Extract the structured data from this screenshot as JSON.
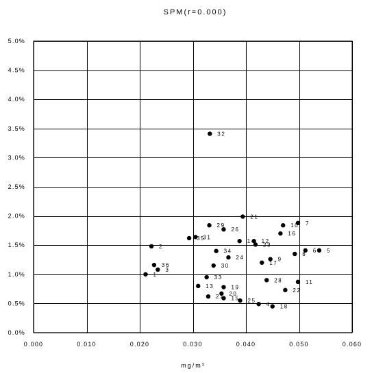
{
  "chart_data": {
    "type": "scatter",
    "title": "SPM(r=0.000)",
    "xlabel": "mg/m³",
    "ylabel": "",
    "xlim": [
      0.0,
      0.06
    ],
    "ylim": [
      0.0,
      0.05
    ],
    "grid": true,
    "x_ticks": [
      0.0,
      0.01,
      0.02,
      0.03,
      0.04,
      0.05,
      0.06
    ],
    "x_tick_labels": [
      "0.000",
      "0.010",
      "0.020",
      "0.030",
      "0.040",
      "0.050",
      "0.060"
    ],
    "y_ticks": [
      0.0,
      0.005,
      0.01,
      0.015,
      0.02,
      0.025,
      0.03,
      0.035,
      0.04,
      0.045,
      0.05
    ],
    "y_tick_labels": [
      "0.0%",
      "0.5%",
      "1.0%",
      "1.5%",
      "2.0%",
      "2.5%",
      "3.0%",
      "3.5%",
      "4.0%",
      "4.5%",
      "5.0%"
    ],
    "points": [
      {
        "label": "1",
        "x": 0.0211,
        "y": 0.01
      },
      {
        "label": "2",
        "x": 0.0222,
        "y": 0.0148
      },
      {
        "label": "3",
        "x": 0.0234,
        "y": 0.0108
      },
      {
        "label": "4",
        "x": 0.0424,
        "y": 0.0049
      },
      {
        "label": "5",
        "x": 0.0538,
        "y": 0.0141
      },
      {
        "label": "6",
        "x": 0.0512,
        "y": 0.0141
      },
      {
        "label": "7",
        "x": 0.0498,
        "y": 0.0188
      },
      {
        "label": "8",
        "x": 0.0492,
        "y": 0.0135
      },
      {
        "label": "9",
        "x": 0.0446,
        "y": 0.0126
      },
      {
        "label": "10",
        "x": 0.047,
        "y": 0.0184
      },
      {
        "label": "11",
        "x": 0.0498,
        "y": 0.0087
      },
      {
        "label": "12",
        "x": 0.0415,
        "y": 0.0157
      },
      {
        "label": "13",
        "x": 0.031,
        "y": 0.008
      },
      {
        "label": "14",
        "x": 0.0388,
        "y": 0.0157
      },
      {
        "label": "15",
        "x": 0.0358,
        "y": 0.0059
      },
      {
        "label": "16",
        "x": 0.0465,
        "y": 0.017
      },
      {
        "label": "17",
        "x": 0.043,
        "y": 0.012
      },
      {
        "label": "18",
        "x": 0.045,
        "y": 0.0045
      },
      {
        "label": "19",
        "x": 0.0358,
        "y": 0.0078
      },
      {
        "label": "20",
        "x": 0.0354,
        "y": 0.0067
      },
      {
        "label": "21",
        "x": 0.0394,
        "y": 0.0199
      },
      {
        "label": "22",
        "x": 0.0474,
        "y": 0.0073
      },
      {
        "label": "23",
        "x": 0.0418,
        "y": 0.0151
      },
      {
        "label": "24",
        "x": 0.0367,
        "y": 0.0129
      },
      {
        "label": "25",
        "x": 0.0389,
        "y": 0.0055
      },
      {
        "label": "26",
        "x": 0.0358,
        "y": 0.0177
      },
      {
        "label": "27",
        "x": 0.0329,
        "y": 0.0062
      },
      {
        "label": "28",
        "x": 0.0439,
        "y": 0.009
      },
      {
        "label": "29",
        "x": 0.0331,
        "y": 0.0184
      },
      {
        "label": "30",
        "x": 0.0339,
        "y": 0.0115
      },
      {
        "label": "31",
        "x": 0.0305,
        "y": 0.0164
      },
      {
        "label": "32",
        "x": 0.0332,
        "y": 0.0341
      },
      {
        "label": "33",
        "x": 0.0326,
        "y": 0.0095
      },
      {
        "label": "34",
        "x": 0.0344,
        "y": 0.014
      },
      {
        "label": "35",
        "x": 0.0293,
        "y": 0.0162
      },
      {
        "label": "36",
        "x": 0.0227,
        "y": 0.0116
      }
    ]
  }
}
